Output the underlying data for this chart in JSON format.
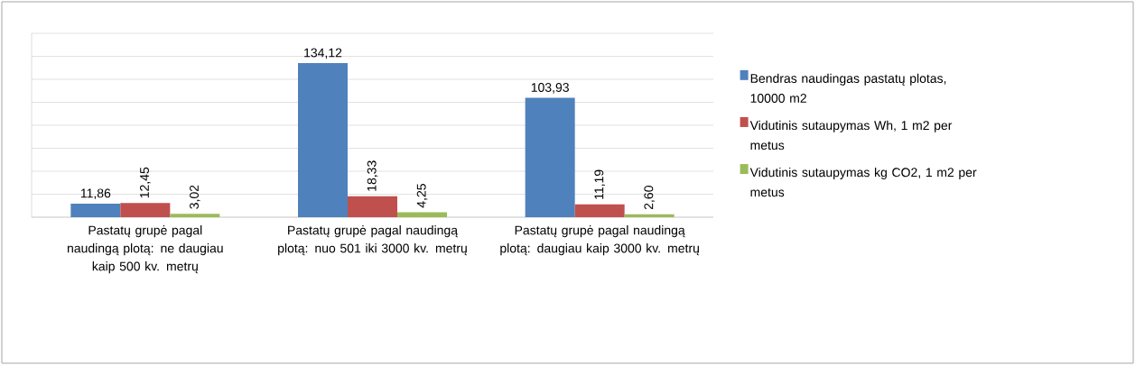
{
  "chart_data": {
    "type": "bar",
    "categories": [
      "Pastatų grupė pagal naudingą plotą: ne daugiau kaip 500 kv. metrų",
      "Pastatų grupė pagal naudingą plotą: nuo 501 iki 3000 kv. metrų",
      "Pastatų grupė pagal naudingą plotą: daugiau kaip 3000 kv. metrų"
    ],
    "series": [
      {
        "name": "Bendras naudingas pastatų plotas, 10000 m2",
        "color": "#4f81bd",
        "values": [
          11.86,
          134.12,
          103.93
        ],
        "value_labels": [
          "11,86",
          "134,12",
          "103,93"
        ]
      },
      {
        "name": "Vidutinis sutaupymas Wh, 1 m2 per metus",
        "color": "#c0504d",
        "values": [
          12.45,
          18.33,
          11.19
        ],
        "value_labels": [
          "12,45",
          "18,33",
          "11,19"
        ]
      },
      {
        "name": "Vidutinis sutaupymas kg CO2, 1 m2 per metus",
        "color": "#9bbb59",
        "values": [
          3.02,
          4.25,
          2.6
        ],
        "value_labels": [
          "3,02",
          "4,25",
          "2,60"
        ]
      }
    ],
    "ylim": [
      0,
      160
    ],
    "yticks": [
      {
        "value": 0,
        "label": null
      },
      {
        "value": 20,
        "label": null
      },
      {
        "value": 40,
        "label": null
      },
      {
        "value": 60,
        "label": null
      },
      {
        "value": 80,
        "label": null
      },
      {
        "value": 100,
        "label": null
      },
      {
        "value": 120,
        "label": null
      },
      {
        "value": 140,
        "label": null
      },
      {
        "value": 160,
        "label": null
      }
    ],
    "tick_labels": "x",
    "grid": "y",
    "legend": "right"
  }
}
